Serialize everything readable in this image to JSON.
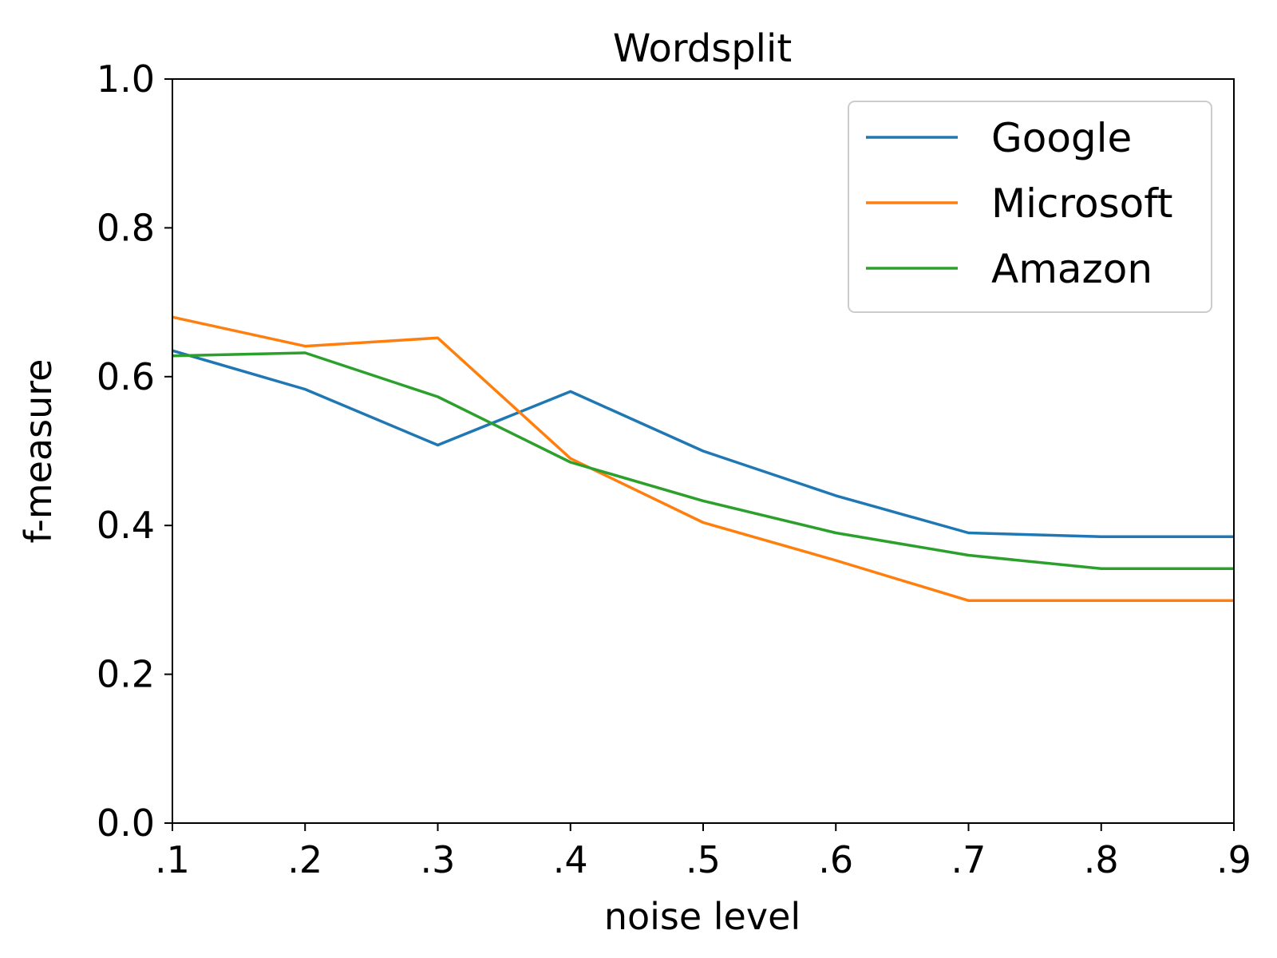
{
  "chart_data": {
    "type": "line",
    "title": "Wordsplit",
    "xlabel": "noise level",
    "ylabel": "f-measure",
    "x": [
      0.1,
      0.2,
      0.3,
      0.4,
      0.5,
      0.6,
      0.7,
      0.8,
      0.9
    ],
    "x_tick_labels": [
      ".1",
      ".2",
      ".3",
      ".4",
      ".5",
      ".6",
      ".7",
      ".8",
      ".9"
    ],
    "y_ticks": [
      0.0,
      0.2,
      0.4,
      0.6,
      0.8,
      1.0
    ],
    "y_tick_labels": [
      "0.0",
      "0.2",
      "0.4",
      "0.6",
      "0.8",
      "1.0"
    ],
    "xlim": [
      0.1,
      0.9
    ],
    "ylim": [
      0.0,
      1.0
    ],
    "grid": false,
    "legend_position": "top-right",
    "series": [
      {
        "name": "Google",
        "color": "#1f77b4",
        "values": [
          0.635,
          0.583,
          0.508,
          0.58,
          0.5,
          0.44,
          0.39,
          0.385,
          0.385
        ]
      },
      {
        "name": "Microsoft",
        "color": "#ff7f0e",
        "values": [
          0.68,
          0.641,
          0.652,
          0.49,
          0.404,
          0.353,
          0.299,
          0.299,
          0.299
        ]
      },
      {
        "name": "Amazon",
        "color": "#2ca02c",
        "values": [
          0.628,
          0.632,
          0.573,
          0.485,
          0.433,
          0.39,
          0.36,
          0.342,
          0.342
        ]
      }
    ]
  }
}
